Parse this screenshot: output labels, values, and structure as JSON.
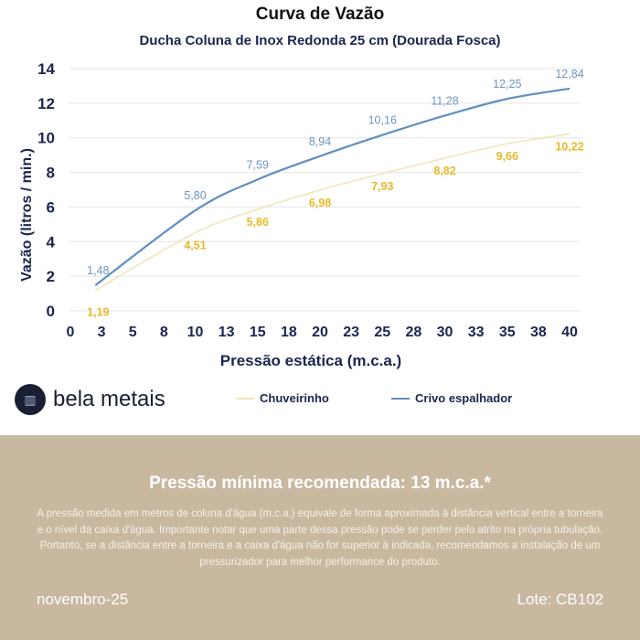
{
  "chart_data": {
    "type": "line",
    "title": "Curva de Vazão",
    "subtitle": "Ducha Coluna de Inox Redonda 25 cm (Dourada Fosca)",
    "xlabel": "Pressão estática (m.c.a.)",
    "ylabel": "Vazão (litros / min.)",
    "xlim": [
      0,
      40
    ],
    "ylim": [
      0,
      14
    ],
    "xticks": [
      "0",
      "3",
      "5",
      "8",
      "10",
      "13",
      "15",
      "18",
      "20",
      "23",
      "25",
      "28",
      "30",
      "33",
      "35",
      "38",
      "40"
    ],
    "yticks": [
      "0",
      "2",
      "4",
      "6",
      "8",
      "10",
      "12",
      "14"
    ],
    "x": [
      2,
      10,
      15,
      20,
      25,
      30,
      35,
      40
    ],
    "series": [
      {
        "name": "Chuveirinho",
        "color": "#f0e6b8",
        "label_color": "#e8b92a",
        "values": [
          1.19,
          4.51,
          5.86,
          6.98,
          7.93,
          8.82,
          9.66,
          10.22
        ],
        "labels": [
          "1,19",
          "4,51",
          "5,86",
          "6,98",
          "7,93",
          "8,82",
          "9,66",
          "10,22"
        ]
      },
      {
        "name": "Crivo espalhador",
        "color": "#5f8fbf",
        "label_color": "#6d96c0",
        "values": [
          1.48,
          5.8,
          7.59,
          8.94,
          10.16,
          11.28,
          12.25,
          12.84
        ],
        "labels": [
          "1,48",
          "5,80",
          "7,59",
          "8,94",
          "10,16",
          "11,28",
          "12,25",
          "12,84"
        ]
      }
    ],
    "grid": true,
    "legend": "bottom"
  },
  "brand": {
    "name": "bela metais"
  },
  "info": {
    "heading": "Pressão mínima recomendada: 13 m.c.a.*",
    "text": "A pressão medida em metros de coluna d'água (m.c.a.) equivale de forma aproximada à distância vertical entre a torneira e o nível da caixa d'água. Importante notar que uma parte dessa pressão pode se perder pelo atrito na própria tubulação. Portanto, se a distância entre a torneira e a caixa d'água não for superior à indicada, recomendamos a instalação de um pressurizador para melhor performance do produto.",
    "date": "novembro-25",
    "lot": "Lote: CB102"
  }
}
